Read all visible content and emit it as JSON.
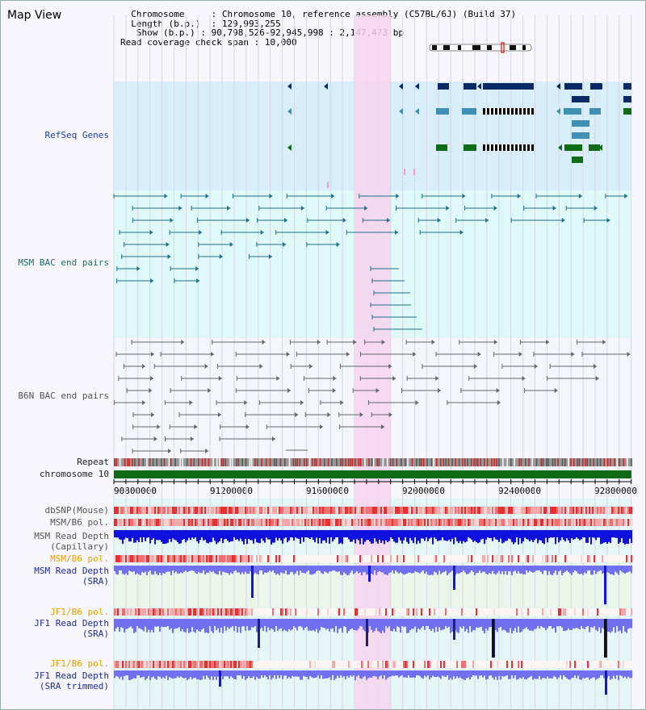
{
  "title": "Map View",
  "info": {
    "chromosome_key": "Chromosome",
    "chromosome_val": "Chromosome 10, reference assembly (C57BL/6J) (Build 37)",
    "length_key": "Length (b.p.)",
    "length_val": "129,993,255",
    "show_key": "Show (b.p.)",
    "show_val": "90,798,526-92,945,998 : 2,147,473 bp",
    "coverage_key": "Read coverage check span",
    "coverage_val": "10,000"
  },
  "tracks": {
    "refseq": "RefSeq Genes",
    "msm_bac": "MSM BAC end pairs",
    "b6n_bac": "B6N BAC end pairs",
    "repeat": "Repeat",
    "chromosome": "chromosome 10",
    "dbsnp": "dbSNP(Mouse)",
    "msm_b6_pol_1": "MSM/B6 pol.",
    "msm_depth_cap_1": "MSM Read Depth",
    "msm_depth_cap_2": "(Capillary)",
    "msm_b6_pol_2": "MSM/B6 pol.",
    "msm_depth_sra_1": "MSM Read Depth",
    "msm_depth_sra_2": "(SRA)",
    "jf1_b6_pol_1": "JF1/B6 pol.",
    "jf1_depth_sra_1": "JF1 Read Depth",
    "jf1_depth_sra_2": "(SRA)",
    "jf1_b6_pol_2": "JF1/B6 pol.",
    "jf1_depth_trim_1": "JF1 Read Depth",
    "jf1_depth_trim_2": "(SRA trimmed)"
  },
  "axis_ticks": [
    "90800000",
    "91200000",
    "91600000",
    "92000000",
    "92400000",
    "92800000"
  ],
  "colors": {
    "highlight": "#f7d4ef",
    "refseq_bg": "#d8eefa",
    "msm_bac_bg": "#dff8f8",
    "navy_gene": "#0a2a66",
    "steel_gene": "#3f8fb5",
    "green_gene": "#0f6b16",
    "teal_pair": "#1f6f88",
    "gray_pair": "#666666",
    "chromosome": "#0f6b16",
    "depth_blue": "#1010e0",
    "depth_purple": "#7070f0"
  }
}
